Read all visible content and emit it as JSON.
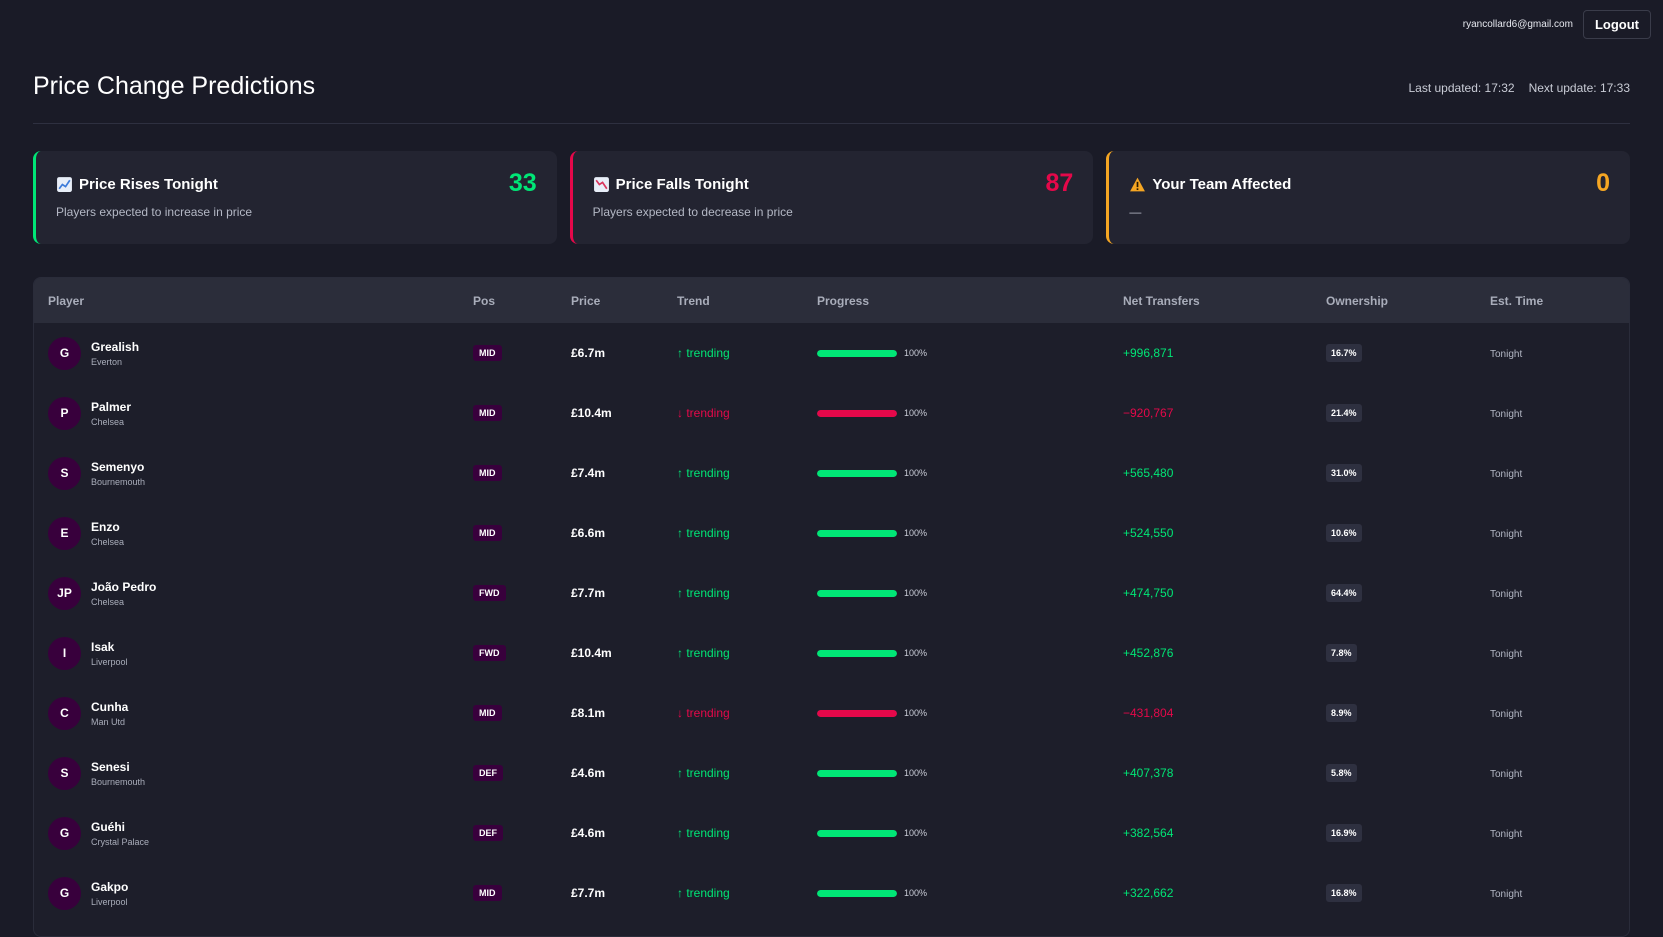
{
  "topbar": {
    "user_email": "ryancollard6@gmail.com",
    "logout_label": "Logout"
  },
  "header": {
    "title": "Price Change Predictions",
    "last_updated": "Last updated: 17:32",
    "next_update": "Next update: 17:33"
  },
  "cards": [
    {
      "title": "Price Rises Tonight",
      "subtitle": "Players expected to increase in price",
      "count": "33",
      "icon": "chart-up-icon",
      "accent": "#00e676"
    },
    {
      "title": "Price Falls Tonight",
      "subtitle": "Players expected to decrease in price",
      "count": "87",
      "icon": "chart-down-icon",
      "accent": "#e5084a"
    },
    {
      "title": "Your Team Affected",
      "subtitle": "—",
      "count": "0",
      "icon": "warning-icon",
      "accent": "#f5a623"
    }
  ],
  "table": {
    "columns": [
      "Player",
      "Pos",
      "Price",
      "Trend",
      "Progress",
      "Net Transfers",
      "Ownership",
      "Est. Time"
    ],
    "rows": [
      {
        "initials": "G",
        "name": "Grealish",
        "team": "Everton",
        "pos": "MID",
        "price": "£6.7m",
        "direction": "up",
        "trend": "↑ trending",
        "progress": 100,
        "progress_label": "100%",
        "net": "+996,871",
        "ownership": "16.7%",
        "est": "Tonight"
      },
      {
        "initials": "P",
        "name": "Palmer",
        "team": "Chelsea",
        "pos": "MID",
        "price": "£10.4m",
        "direction": "down",
        "trend": "↓ trending",
        "progress": 100,
        "progress_label": "100%",
        "net": "−920,767",
        "ownership": "21.4%",
        "est": "Tonight"
      },
      {
        "initials": "S",
        "name": "Semenyo",
        "team": "Bournemouth",
        "pos": "MID",
        "price": "£7.4m",
        "direction": "up",
        "trend": "↑ trending",
        "progress": 100,
        "progress_label": "100%",
        "net": "+565,480",
        "ownership": "31.0%",
        "est": "Tonight"
      },
      {
        "initials": "E",
        "name": "Enzo",
        "team": "Chelsea",
        "pos": "MID",
        "price": "£6.6m",
        "direction": "up",
        "trend": "↑ trending",
        "progress": 100,
        "progress_label": "100%",
        "net": "+524,550",
        "ownership": "10.6%",
        "est": "Tonight"
      },
      {
        "initials": "JP",
        "name": "João Pedro",
        "team": "Chelsea",
        "pos": "FWD",
        "price": "£7.7m",
        "direction": "up",
        "trend": "↑ trending",
        "progress": 100,
        "progress_label": "100%",
        "net": "+474,750",
        "ownership": "64.4%",
        "est": "Tonight"
      },
      {
        "initials": "I",
        "name": "Isak",
        "team": "Liverpool",
        "pos": "FWD",
        "price": "£10.4m",
        "direction": "up",
        "trend": "↑ trending",
        "progress": 100,
        "progress_label": "100%",
        "net": "+452,876",
        "ownership": "7.8%",
        "est": "Tonight"
      },
      {
        "initials": "C",
        "name": "Cunha",
        "team": "Man Utd",
        "pos": "MID",
        "price": "£8.1m",
        "direction": "down",
        "trend": "↓ trending",
        "progress": 100,
        "progress_label": "100%",
        "net": "−431,804",
        "ownership": "8.9%",
        "est": "Tonight"
      },
      {
        "initials": "S",
        "name": "Senesi",
        "team": "Bournemouth",
        "pos": "DEF",
        "price": "£4.6m",
        "direction": "up",
        "trend": "↑ trending",
        "progress": 100,
        "progress_label": "100%",
        "net": "+407,378",
        "ownership": "5.8%",
        "est": "Tonight"
      },
      {
        "initials": "G",
        "name": "Guéhi",
        "team": "Crystal Palace",
        "pos": "DEF",
        "price": "£4.6m",
        "direction": "up",
        "trend": "↑ trending",
        "progress": 100,
        "progress_label": "100%",
        "net": "+382,564",
        "ownership": "16.9%",
        "est": "Tonight"
      },
      {
        "initials": "G",
        "name": "Gakpo",
        "team": "Liverpool",
        "pos": "MID",
        "price": "£7.7m",
        "direction": "up",
        "trend": "↑ trending",
        "progress": 100,
        "progress_label": "100%",
        "net": "+322,662",
        "ownership": "16.8%",
        "est": "Tonight"
      }
    ]
  }
}
